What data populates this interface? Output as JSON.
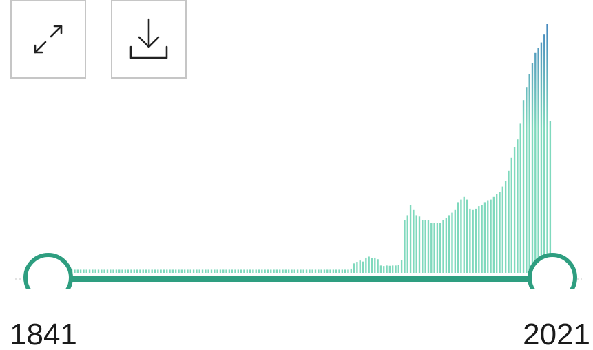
{
  "controls": {
    "expand_icon": "expand-arrows-icon",
    "download_icon": "download-icon"
  },
  "range": {
    "min_label": "1841",
    "max_label": "2021",
    "min_year": 1841,
    "max_year": 2021,
    "selected_start": 1841,
    "selected_end": 2021
  },
  "colors": {
    "track": "#2e9e80",
    "handle_border": "#2e9e80",
    "bar_low": "#7fd9bd",
    "bar_high": "#3f7fbf",
    "button_border": "#c6c6c6"
  },
  "histogram": {
    "start_year": 1841,
    "relative_counts": [
      0.012,
      0.012,
      0.012,
      0.012,
      0.012,
      0.012,
      0.012,
      0.012,
      0.012,
      0.012,
      0.012,
      0.012,
      0.012,
      0.012,
      0.012,
      0.012,
      0.012,
      0.012,
      0.012,
      0.012,
      0.012,
      0.012,
      0.012,
      0.012,
      0.012,
      0.012,
      0.012,
      0.012,
      0.012,
      0.012,
      0.012,
      0.012,
      0.012,
      0.012,
      0.012,
      0.012,
      0.012,
      0.012,
      0.012,
      0.012,
      0.012,
      0.012,
      0.012,
      0.012,
      0.012,
      0.012,
      0.012,
      0.012,
      0.012,
      0.012,
      0.012,
      0.012,
      0.012,
      0.012,
      0.012,
      0.012,
      0.012,
      0.012,
      0.012,
      0.012,
      0.012,
      0.012,
      0.012,
      0.012,
      0.012,
      0.012,
      0.012,
      0.012,
      0.012,
      0.012,
      0.012,
      0.012,
      0.012,
      0.012,
      0.012,
      0.012,
      0.012,
      0.012,
      0.012,
      0.012,
      0.012,
      0.012,
      0.012,
      0.012,
      0.012,
      0.012,
      0.012,
      0.012,
      0.012,
      0.012,
      0.012,
      0.012,
      0.012,
      0.012,
      0.016,
      0.036,
      0.042,
      0.047,
      0.043,
      0.058,
      0.062,
      0.056,
      0.058,
      0.052,
      0.028,
      0.026,
      0.028,
      0.027,
      0.028,
      0.028,
      0.03,
      0.048,
      0.2,
      0.22,
      0.26,
      0.24,
      0.22,
      0.215,
      0.2,
      0.2,
      0.2,
      0.192,
      0.19,
      0.192,
      0.19,
      0.2,
      0.21,
      0.22,
      0.23,
      0.24,
      0.27,
      0.28,
      0.29,
      0.28,
      0.245,
      0.24,
      0.245,
      0.255,
      0.26,
      0.27,
      0.275,
      0.28,
      0.29,
      0.3,
      0.31,
      0.33,
      0.35,
      0.39,
      0.44,
      0.48,
      0.51,
      0.57,
      0.66,
      0.71,
      0.76,
      0.8,
      0.84,
      0.86,
      0.88,
      0.91,
      0.95,
      0.58
    ]
  }
}
